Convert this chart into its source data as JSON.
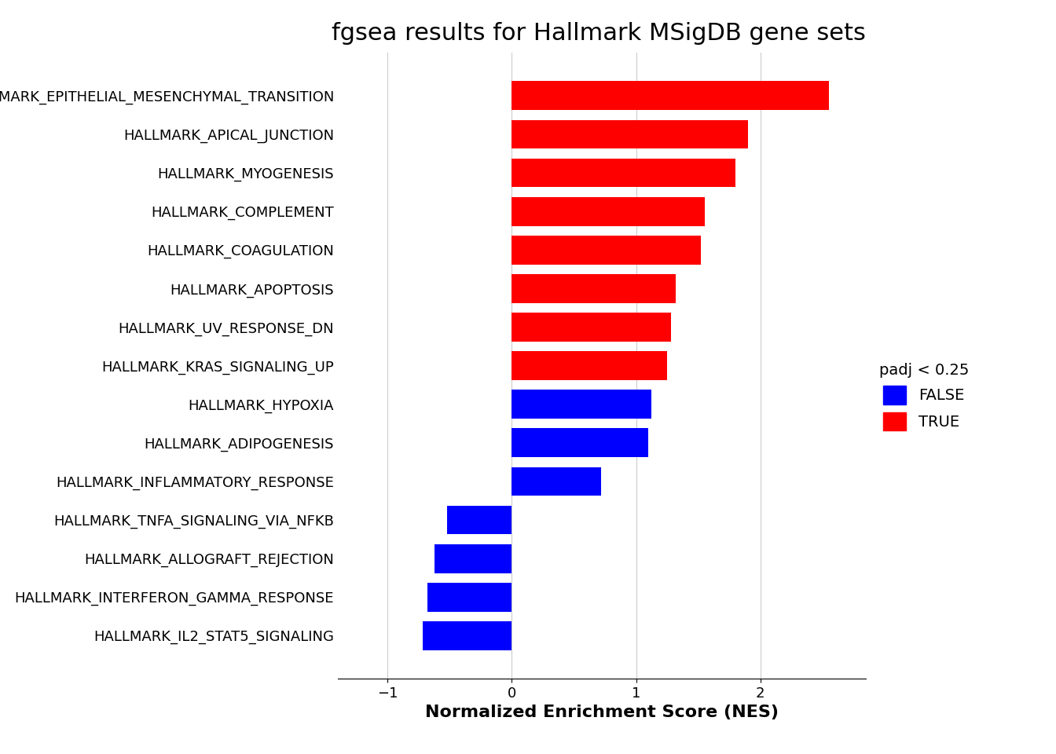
{
  "title": "fgsea results for Hallmark MSigDB gene sets",
  "xlabel": "Normalized Enrichment Score (NES)",
  "categories": [
    "HALLMARK_EPITHELIAL_MESENCHYMAL_TRANSITION",
    "HALLMARK_APICAL_JUNCTION",
    "HALLMARK_MYOGENESIS",
    "HALLMARK_COMPLEMENT",
    "HALLMARK_COAGULATION",
    "HALLMARK_APOPTOSIS",
    "HALLMARK_UV_RESPONSE_DN",
    "HALLMARK_KRAS_SIGNALING_UP",
    "HALLMARK_HYPOXIA",
    "HALLMARK_ADIPOGENESIS",
    "HALLMARK_INFLAMMATORY_RESPONSE",
    "HALLMARK_TNFA_SIGNALING_VIA_NFKB",
    "HALLMARK_ALLOGRAFT_REJECTION",
    "HALLMARK_INTERFERON_GAMMA_RESPONSE",
    "HALLMARK_IL2_STAT5_SIGNALING"
  ],
  "nes_values": [
    2.55,
    1.9,
    1.8,
    1.55,
    1.52,
    1.32,
    1.28,
    1.25,
    1.12,
    1.1,
    0.72,
    -0.52,
    -0.62,
    -0.68,
    -0.72
  ],
  "significant": [
    true,
    true,
    true,
    true,
    true,
    true,
    true,
    true,
    false,
    false,
    false,
    false,
    false,
    false,
    false
  ],
  "color_true": "#ff0000",
  "color_false": "#0000ff",
  "background_color": "#ffffff",
  "legend_title": "padj < 0.25",
  "legend_false": "FALSE",
  "legend_true": "TRUE",
  "xlim": [
    -1.4,
    2.85
  ],
  "xticks": [
    -1,
    0,
    1,
    2
  ],
  "title_fontsize": 22,
  "axis_label_fontsize": 16,
  "tick_fontsize": 13,
  "bar_height": 0.75,
  "grid_color": "#cccccc"
}
